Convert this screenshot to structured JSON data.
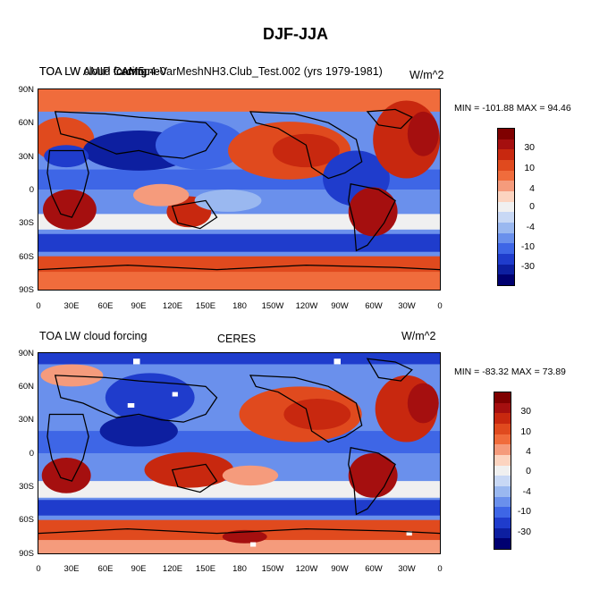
{
  "main_title": "DJF-JJA",
  "lat_ticks": [
    "90N",
    "60N",
    "30N",
    "0",
    "30S",
    "60S",
    "90S"
  ],
  "lon_ticks": [
    "0",
    "30E",
    "60E",
    "90E",
    "120E",
    "150E",
    "180",
    "150W",
    "120W",
    "90W",
    "60W",
    "30W",
    "0"
  ],
  "colorbar_labels": [
    "30",
    "10",
    "4",
    "0",
    "-4",
    "-10",
    "-30"
  ],
  "colors": {
    "levels": [
      "#7f0000",
      "#a50f0f",
      "#c8280f",
      "#e04a1e",
      "#f06c3c",
      "#f59b7c",
      "#fcd4c0",
      "#f0f0f0",
      "#c8d8f5",
      "#9ab8f0",
      "#6a90ec",
      "#3e66e6",
      "#1f3ccc",
      "#0d1fa0",
      "#000070"
    ]
  },
  "panels": [
    {
      "left_title": "TOA LW cloud forcing",
      "center_title": "camnp4-VarMeshNH3.Club_Test.002 (yrs 1979-1981)",
      "overlap_title": "TOA LW AMIP CAM5 ne0",
      "units": "W/m^2",
      "min_max": "MIN = -101.88 MAX =  94.46"
    },
    {
      "left_title": "TOA LW cloud forcing",
      "center_title": "CERES",
      "units": "W/m^2",
      "min_max": "MIN = -83.32 MAX =  73.89"
    }
  ]
}
